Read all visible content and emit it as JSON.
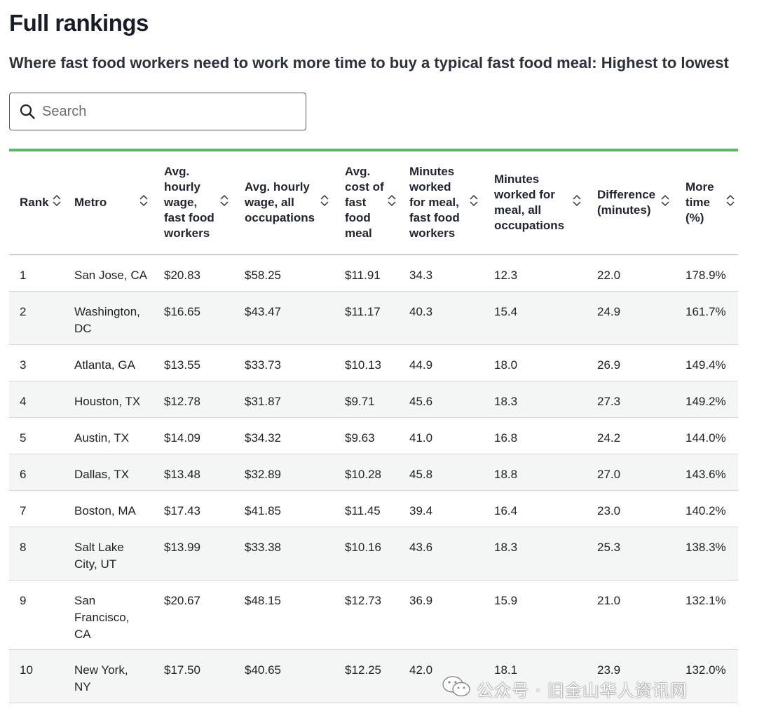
{
  "header": {
    "title": "Full rankings",
    "subtitle": "Where fast food workers need to work more time to buy a typical fast food meal: Highest to lowest"
  },
  "search": {
    "placeholder": "Search",
    "value": ""
  },
  "table": {
    "columns": [
      {
        "key": "rank",
        "label": "Rank"
      },
      {
        "key": "metro",
        "label": "Metro"
      },
      {
        "key": "wage_ff",
        "label": "Avg. hourly wage, fast food workers"
      },
      {
        "key": "wage_all",
        "label": "Avg. hourly wage, all occupations"
      },
      {
        "key": "meal_cost",
        "label": "Avg. cost of fast food meal"
      },
      {
        "key": "min_ff",
        "label": "Minutes worked for meal, fast food workers"
      },
      {
        "key": "min_all",
        "label": "Minutes worked for meal, all occupations"
      },
      {
        "key": "diff",
        "label": "Difference (minutes)"
      },
      {
        "key": "more",
        "label": "More time (%)"
      }
    ],
    "rows": [
      [
        "1",
        "San Jose, CA",
        "$20.83",
        "$58.25",
        "$11.91",
        "34.3",
        "12.3",
        "22.0",
        "178.9%"
      ],
      [
        "2",
        "Washington, DC",
        "$16.65",
        "$43.47",
        "$11.17",
        "40.3",
        "15.4",
        "24.9",
        "161.7%"
      ],
      [
        "3",
        "Atlanta, GA",
        "$13.55",
        "$33.73",
        "$10.13",
        "44.9",
        "18.0",
        "26.9",
        "149.4%"
      ],
      [
        "4",
        "Houston, TX",
        "$12.78",
        "$31.87",
        "$9.71",
        "45.6",
        "18.3",
        "27.3",
        "149.2%"
      ],
      [
        "5",
        "Austin, TX",
        "$14.09",
        "$34.32",
        "$9.63",
        "41.0",
        "16.8",
        "24.2",
        "144.0%"
      ],
      [
        "6",
        "Dallas, TX",
        "$13.48",
        "$32.89",
        "$10.28",
        "45.8",
        "18.8",
        "27.0",
        "143.6%"
      ],
      [
        "7",
        "Boston, MA",
        "$17.43",
        "$41.85",
        "$11.45",
        "39.4",
        "16.4",
        "23.0",
        "140.2%"
      ],
      [
        "8",
        "Salt Lake City, UT",
        "$13.99",
        "$33.38",
        "$10.16",
        "43.6",
        "18.3",
        "25.3",
        "138.3%"
      ],
      [
        "9",
        "San Francisco, CA",
        "$20.67",
        "$48.15",
        "$12.73",
        "36.9",
        "15.9",
        "21.0",
        "132.1%"
      ],
      [
        "10",
        "New York, NY",
        "$17.50",
        "$40.65",
        "$12.25",
        "42.0",
        "18.1",
        "23.9",
        "132.0%"
      ]
    ]
  },
  "watermark": {
    "text": "公众号 · 旧金山华人资讯网",
    "icon": "wechat-icon"
  },
  "colors": {
    "accent_rule": "#5cb85c",
    "row_alt": "#f4f5f5"
  },
  "chart_data": {
    "type": "table",
    "title": "Full rankings",
    "subtitle": "Where fast food workers need to work more time to buy a typical fast food meal: Highest to lowest",
    "columns": [
      "Rank",
      "Metro",
      "Avg. hourly wage, fast food workers",
      "Avg. hourly wage, all occupations",
      "Avg. cost of fast food meal",
      "Minutes worked for meal, fast food workers",
      "Minutes worked for meal, all occupations",
      "Difference (minutes)",
      "More time (%)"
    ],
    "rows": [
      [
        1,
        "San Jose, CA",
        20.83,
        58.25,
        11.91,
        34.3,
        12.3,
        22.0,
        178.9
      ],
      [
        2,
        "Washington, DC",
        16.65,
        43.47,
        11.17,
        40.3,
        15.4,
        24.9,
        161.7
      ],
      [
        3,
        "Atlanta, GA",
        13.55,
        33.73,
        10.13,
        44.9,
        18.0,
        26.9,
        149.4
      ],
      [
        4,
        "Houston, TX",
        12.78,
        31.87,
        9.71,
        45.6,
        18.3,
        27.3,
        149.2
      ],
      [
        5,
        "Austin, TX",
        14.09,
        34.32,
        9.63,
        41.0,
        16.8,
        24.2,
        144.0
      ],
      [
        6,
        "Dallas, TX",
        13.48,
        32.89,
        10.28,
        45.8,
        18.8,
        27.0,
        143.6
      ],
      [
        7,
        "Boston, MA",
        17.43,
        41.85,
        11.45,
        39.4,
        16.4,
        23.0,
        140.2
      ],
      [
        8,
        "Salt Lake City, UT",
        13.99,
        33.38,
        10.16,
        43.6,
        18.3,
        25.3,
        138.3
      ],
      [
        9,
        "San Francisco, CA",
        20.67,
        48.15,
        12.73,
        36.9,
        15.9,
        21.0,
        132.1
      ],
      [
        10,
        "New York, NY",
        17.5,
        40.65,
        12.25,
        42.0,
        18.1,
        23.9,
        132.0
      ]
    ]
  }
}
